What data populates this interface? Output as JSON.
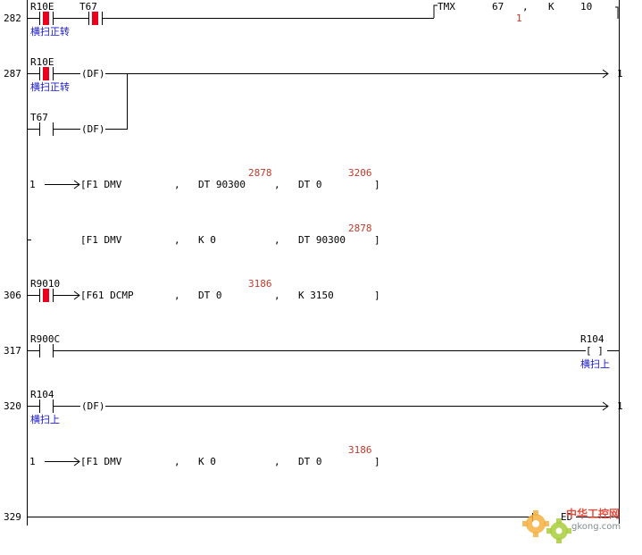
{
  "rungs": [
    {
      "step": "282",
      "contacts": [
        {
          "name": "R10E",
          "comment": "横扫正转"
        },
        {
          "name": "T67"
        }
      ],
      "instruction": "TMX",
      "args": [
        "67",
        ",",
        "K",
        "10"
      ],
      "live_value": "1"
    },
    {
      "step": "287",
      "contacts": [
        {
          "name": "R10E",
          "comment": "横扫正转",
          "mod": "(DF)"
        },
        {
          "name": "T67",
          "mod": "(DF)"
        }
      ],
      "output": "1"
    },
    {
      "step": "",
      "marker": "1",
      "instruction": "[F1 DMV",
      "args": [
        ",",
        "DT 90300",
        ",",
        "DT 0",
        "]"
      ],
      "live_values": [
        "2878",
        "3206"
      ]
    },
    {
      "step": "",
      "instruction": "[F1 DMV",
      "args": [
        ",",
        "K 0",
        ",",
        "DT 90300",
        "]"
      ],
      "live_values": [
        "2878"
      ]
    },
    {
      "step": "306",
      "contacts": [
        {
          "name": "R9010"
        }
      ],
      "instruction": "[F61 DCMP",
      "args": [
        ",",
        "DT 0",
        ",",
        "K 3150",
        "]"
      ],
      "live_values": [
        "3186"
      ]
    },
    {
      "step": "317",
      "contacts": [
        {
          "name": "R900C"
        }
      ],
      "coil": {
        "name": "R104",
        "symbol": "[ ]",
        "comment": "横扫上"
      }
    },
    {
      "step": "320",
      "contacts": [
        {
          "name": "R104",
          "comment": "横扫上",
          "mod": "(DF)"
        }
      ],
      "output": "1"
    },
    {
      "step": "",
      "marker": "1",
      "instruction": "[F1 DMV",
      "args": [
        ",",
        "K 0",
        ",",
        "DT 0",
        "]"
      ],
      "live_values": [
        "3186"
      ]
    },
    {
      "step": "329",
      "end_label": "ED"
    }
  ],
  "watermark": {
    "site": "中华工控网",
    "domain": "gkong.com"
  },
  "colors": {
    "active_contact": "#e8001c",
    "comment": "#1a1acc",
    "live_value": "#c0392b",
    "line": "#000000"
  }
}
